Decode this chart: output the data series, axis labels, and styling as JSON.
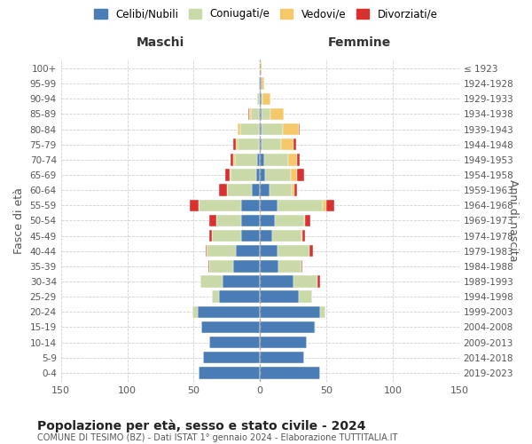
{
  "age_groups": [
    "0-4",
    "5-9",
    "10-14",
    "15-19",
    "20-24",
    "25-29",
    "30-34",
    "35-39",
    "40-44",
    "45-49",
    "50-54",
    "55-59",
    "60-64",
    "65-69",
    "70-74",
    "75-79",
    "80-84",
    "85-89",
    "90-94",
    "95-99",
    "100+"
  ],
  "birth_years": [
    "2019-2023",
    "2014-2018",
    "2009-2013",
    "2004-2008",
    "1999-2003",
    "1994-1998",
    "1989-1993",
    "1984-1988",
    "1979-1983",
    "1974-1978",
    "1969-1973",
    "1964-1968",
    "1959-1963",
    "1954-1958",
    "1949-1953",
    "1944-1948",
    "1939-1943",
    "1934-1938",
    "1929-1933",
    "1924-1928",
    "≤ 1923"
  ],
  "male_celibi": [
    46,
    43,
    38,
    44,
    47,
    31,
    28,
    20,
    18,
    14,
    14,
    14,
    6,
    3,
    2,
    1,
    1,
    1,
    0,
    1,
    0
  ],
  "male_coniugati": [
    0,
    0,
    0,
    0,
    4,
    5,
    17,
    18,
    22,
    22,
    19,
    32,
    19,
    19,
    17,
    16,
    14,
    6,
    2,
    0,
    0
  ],
  "male_vedovi": [
    0,
    0,
    0,
    0,
    0,
    0,
    0,
    0,
    0,
    0,
    0,
    0,
    0,
    1,
    1,
    1,
    2,
    1,
    0,
    0,
    0
  ],
  "male_divorziati": [
    0,
    0,
    0,
    0,
    0,
    0,
    0,
    1,
    1,
    2,
    5,
    7,
    6,
    3,
    2,
    2,
    0,
    1,
    0,
    0,
    0
  ],
  "female_celibi": [
    45,
    33,
    35,
    41,
    45,
    29,
    25,
    14,
    13,
    9,
    11,
    13,
    7,
    4,
    3,
    1,
    1,
    1,
    1,
    1,
    0
  ],
  "female_coniugati": [
    0,
    0,
    0,
    1,
    4,
    10,
    18,
    17,
    24,
    22,
    22,
    34,
    17,
    19,
    18,
    15,
    16,
    7,
    1,
    0,
    0
  ],
  "female_vedovi": [
    0,
    0,
    0,
    0,
    0,
    0,
    0,
    0,
    0,
    1,
    1,
    3,
    2,
    5,
    7,
    9,
    12,
    10,
    6,
    2,
    1
  ],
  "female_divorziati": [
    0,
    0,
    0,
    0,
    0,
    0,
    2,
    1,
    3,
    2,
    4,
    6,
    2,
    5,
    2,
    2,
    1,
    0,
    0,
    0,
    0
  ],
  "color_celibi": "#4a7db5",
  "color_coniugati": "#c9d9a8",
  "color_vedovi": "#f5c96a",
  "color_divorziati": "#d93030",
  "title_main": "Popolazione per età, sesso e stato civile - 2024",
  "title_sub": "COMUNE DI TESIMO (BZ) - Dati ISTAT 1° gennaio 2024 - Elaborazione TUTTITALIA.IT",
  "ylabel_left": "Fasce di età",
  "ylabel_right": "Anni di nascita",
  "xlabel_left": "Maschi",
  "xlabel_right": "Femmine",
  "xlim": 150,
  "background_color": "#ffffff",
  "grid_color": "#cccccc"
}
